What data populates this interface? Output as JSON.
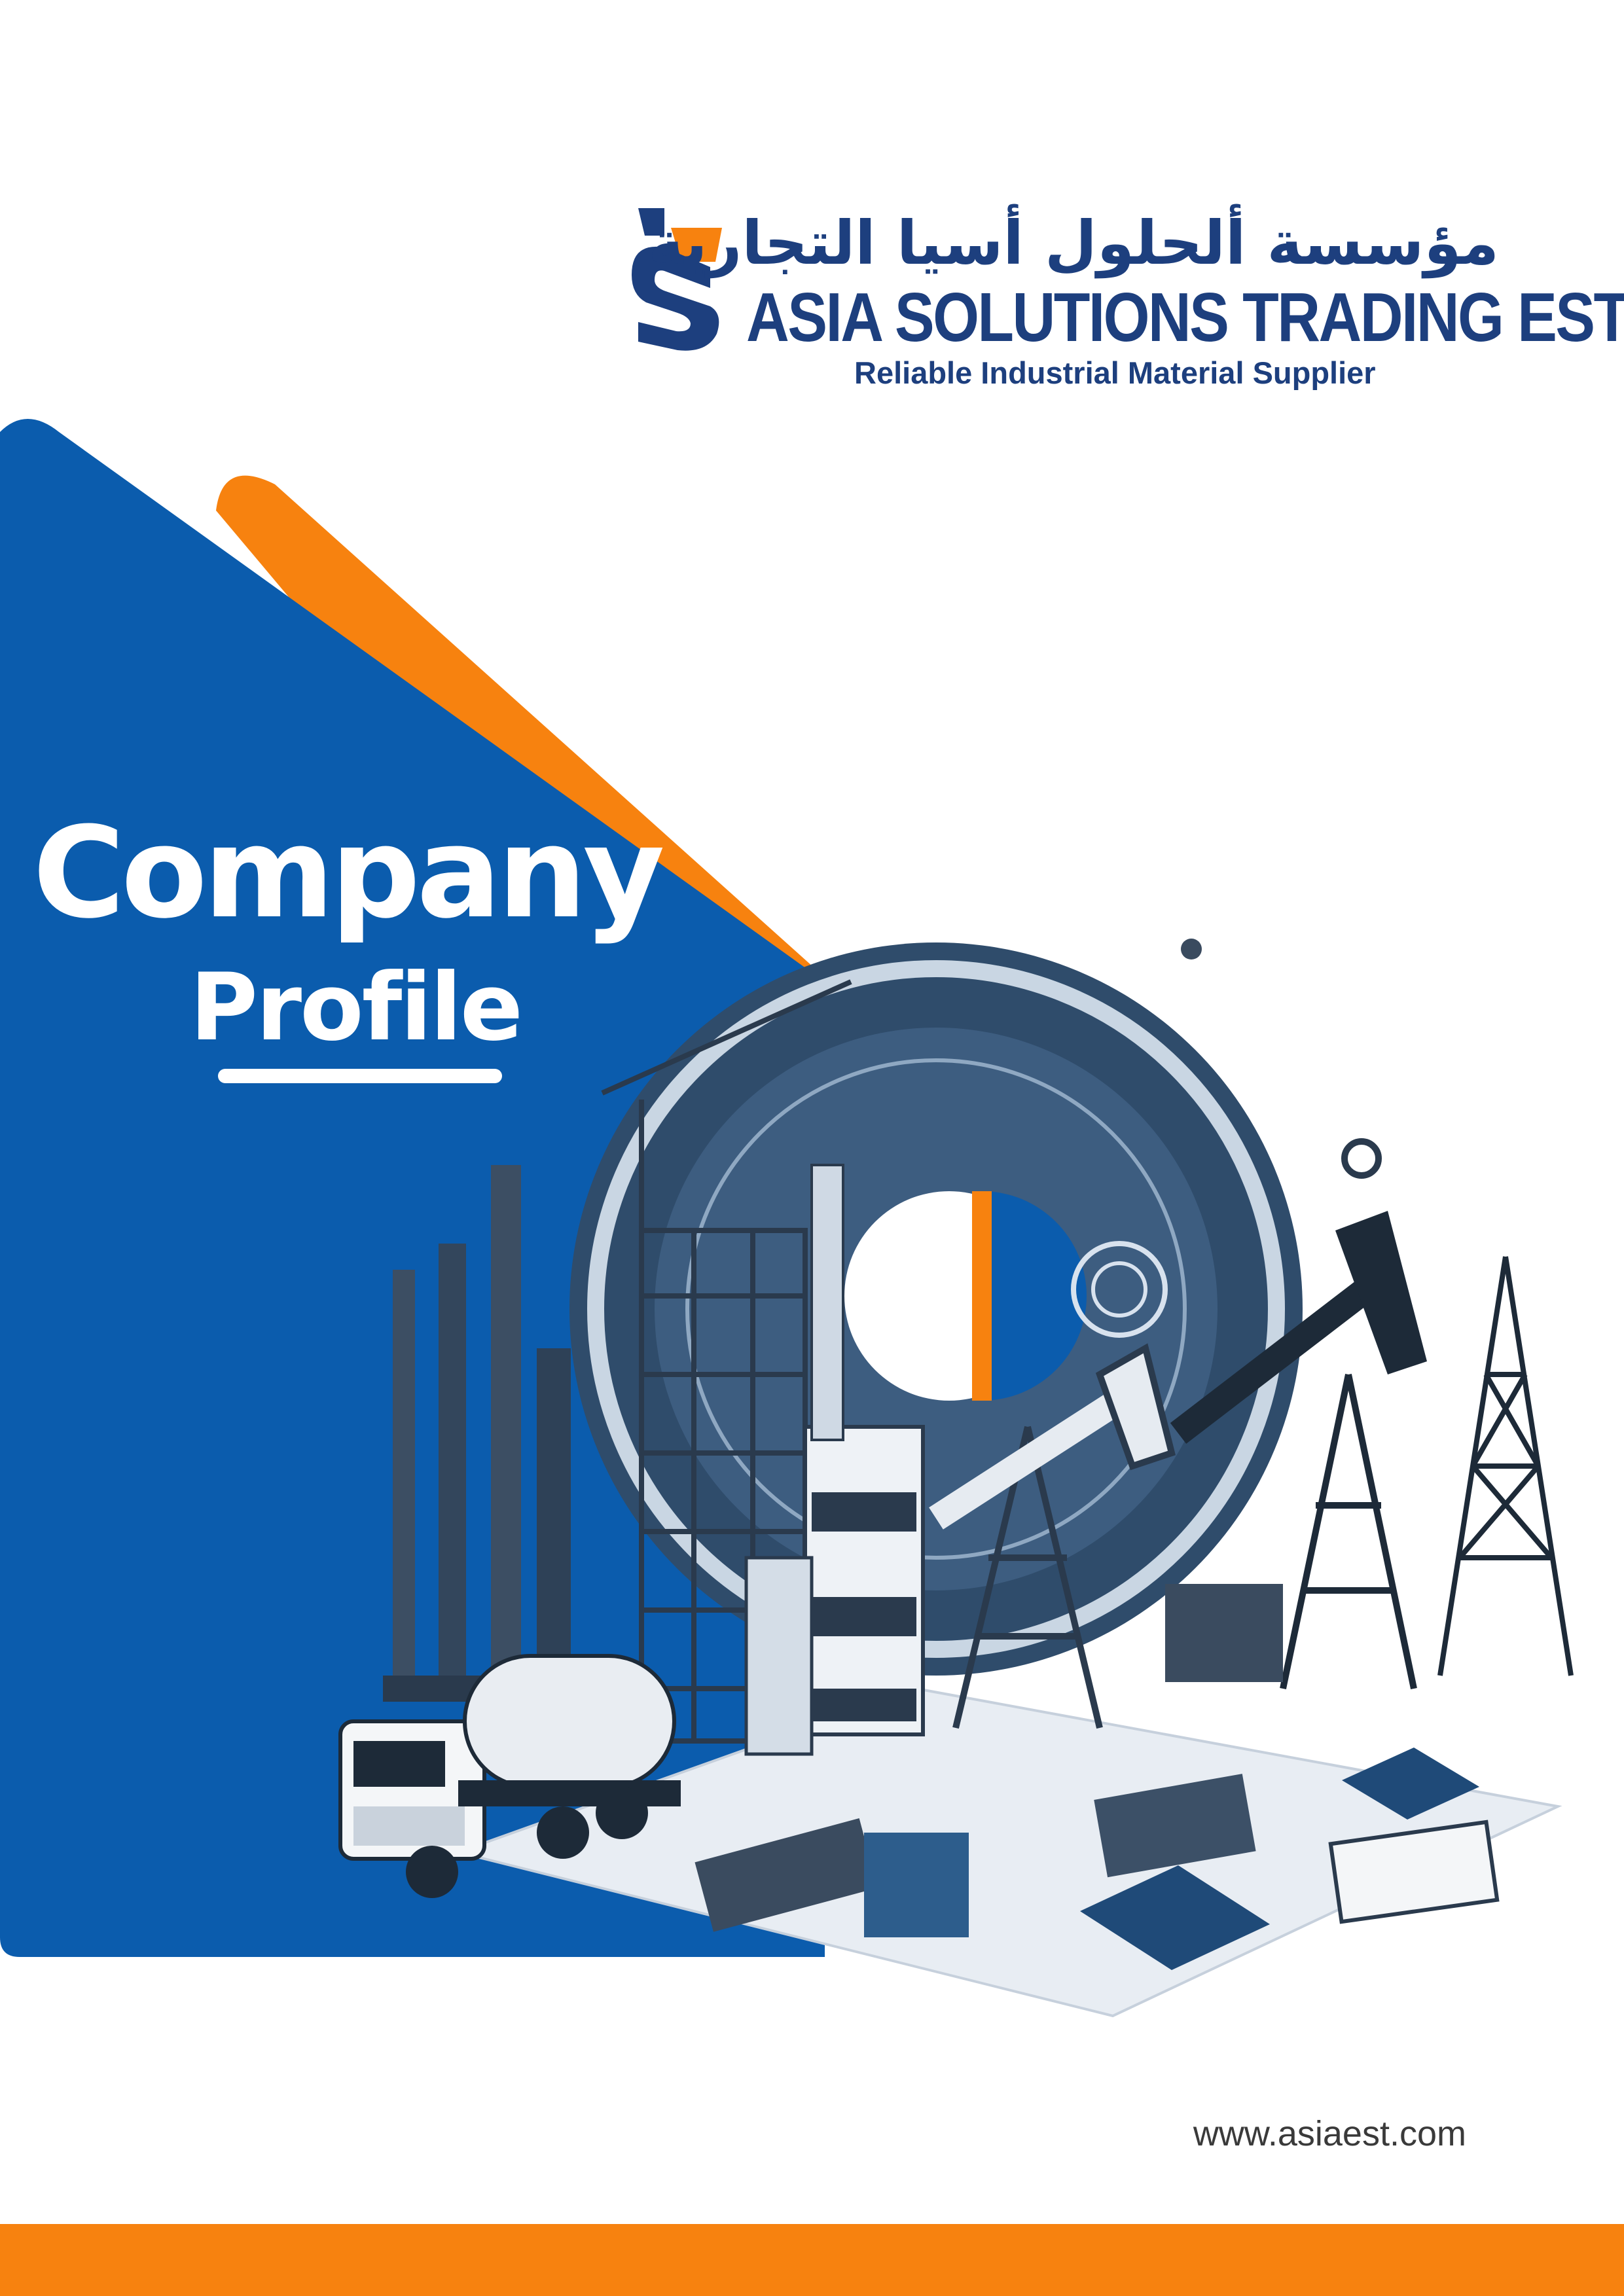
{
  "brand": {
    "arabic_name": "مؤسسة ألحلول أسيا التجارية",
    "english_name": "ASIA SOLUTIONS TRADING EST.",
    "tagline": "Reliable Industrial Material Supplier"
  },
  "cover": {
    "title_line1": "Company",
    "title_line2": "Profile"
  },
  "footer": {
    "website": "www.asiaest.com"
  },
  "colors": {
    "primary_blue": "#0b5cad",
    "navy_text": "#1d3f7e",
    "accent_orange": "#f7820f",
    "background": "#ffffff"
  },
  "icons": {
    "logo": "asia-solutions-logo-mark",
    "illustration": "industrial-collage-illustration"
  }
}
